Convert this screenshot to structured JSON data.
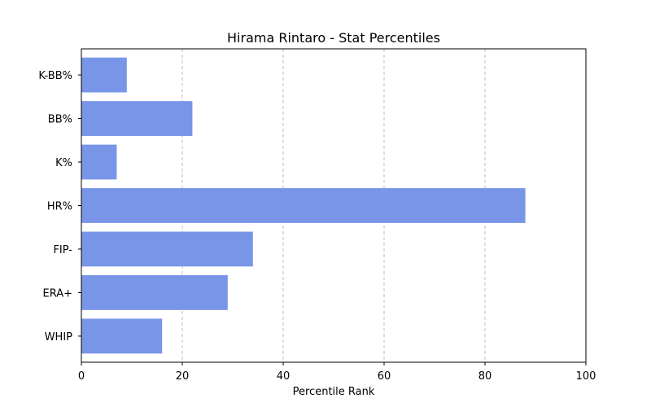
{
  "chart_data": {
    "type": "bar",
    "orientation": "horizontal",
    "title": "Hirama Rintaro - Stat Percentiles",
    "xlabel": "Percentile Rank",
    "ylabel": "",
    "categories": [
      "WHIP",
      "ERA+",
      "FIP-",
      "HR%",
      "K%",
      "BB%",
      "K-BB%"
    ],
    "values": [
      16,
      29,
      34,
      88,
      7,
      22,
      9
    ],
    "xlim": [
      0,
      100
    ],
    "xticks": [
      0,
      20,
      40,
      60,
      80,
      100
    ],
    "grid": "x-axis dashed",
    "bar_color": "#7895e8"
  }
}
